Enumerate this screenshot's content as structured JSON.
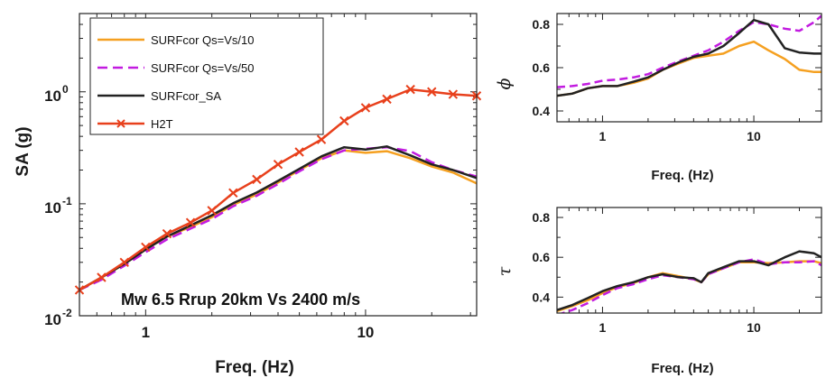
{
  "chart_data": [
    {
      "id": "sa",
      "type": "line",
      "xscale": "log",
      "yscale": "log",
      "xlim": [
        0.5,
        32
      ],
      "ylim": [
        0.01,
        5
      ],
      "xlabel": "Freq. (Hz)",
      "ylabel": "SA (g)",
      "xticks": [
        {
          "v": 1,
          "label": "1"
        },
        {
          "v": 10,
          "label": "10"
        }
      ],
      "yticks": [
        {
          "v": 0.01,
          "base": "10",
          "exp": "-2"
        },
        {
          "v": 0.1,
          "base": "10",
          "exp": "-1"
        },
        {
          "v": 1,
          "base": "10",
          "exp": "0"
        }
      ],
      "annotation": "Mw 6.5 Rrup 20km Vs 2400 m/s",
      "legend_position": "top-left",
      "series": [
        {
          "name": "SURFcor Qs=Vs/10",
          "color": "#f5a020",
          "dash": "",
          "marker": "",
          "x": [
            0.5,
            0.63,
            0.8,
            1,
            1.25,
            1.6,
            2,
            2.5,
            3.2,
            4,
            5,
            6.3,
            8,
            10,
            12.5,
            16,
            20,
            25,
            32
          ],
          "y": [
            0.017,
            0.022,
            0.029,
            0.039,
            0.051,
            0.062,
            0.076,
            0.098,
            0.121,
            0.155,
            0.2,
            0.255,
            0.3,
            0.285,
            0.295,
            0.255,
            0.215,
            0.19,
            0.152
          ]
        },
        {
          "name": "SURFcor Qs=Vs/50",
          "color": "#c21be0",
          "dash": "11 6",
          "marker": "",
          "x": [
            0.5,
            0.63,
            0.8,
            1,
            1.25,
            1.6,
            2,
            2.5,
            3.2,
            4,
            5,
            6.3,
            8,
            10,
            12.5,
            16,
            20,
            25,
            32
          ],
          "y": [
            0.017,
            0.021,
            0.028,
            0.037,
            0.048,
            0.06,
            0.073,
            0.095,
            0.118,
            0.15,
            0.195,
            0.25,
            0.3,
            0.31,
            0.32,
            0.295,
            0.235,
            0.2,
            0.175
          ]
        },
        {
          "name": "SURFcor_SA",
          "color": "#222222",
          "dash": "",
          "marker": "",
          "x": [
            0.5,
            0.63,
            0.8,
            1,
            1.25,
            1.6,
            2,
            2.5,
            3.2,
            4,
            5,
            6.3,
            8,
            10,
            12.5,
            16,
            20,
            25,
            32
          ],
          "y": [
            0.017,
            0.022,
            0.029,
            0.039,
            0.051,
            0.064,
            0.079,
            0.101,
            0.126,
            0.16,
            0.205,
            0.265,
            0.32,
            0.305,
            0.325,
            0.27,
            0.225,
            0.2,
            0.17
          ]
        },
        {
          "name": "H2T",
          "color": "#e8401c",
          "dash": "",
          "marker": "x",
          "x": [
            0.5,
            0.63,
            0.8,
            1,
            1.25,
            1.6,
            2,
            2.5,
            3.2,
            4,
            5,
            6.3,
            8,
            10,
            12.5,
            16,
            20,
            25,
            32
          ],
          "y": [
            0.017,
            0.022,
            0.03,
            0.041,
            0.054,
            0.068,
            0.087,
            0.125,
            0.165,
            0.225,
            0.29,
            0.375,
            0.55,
            0.72,
            0.86,
            1.05,
            1.0,
            0.95,
            0.92
          ]
        }
      ]
    },
    {
      "id": "phi",
      "type": "line",
      "xscale": "log",
      "yscale": "linear",
      "xlim": [
        0.5,
        28
      ],
      "ylim": [
        0.35,
        0.85
      ],
      "xlabel": "Freq. (Hz)",
      "ylabel": "ϕ",
      "xticks": [
        {
          "v": 1,
          "label": "1"
        },
        {
          "v": 10,
          "label": "10"
        }
      ],
      "yticks": [
        {
          "v": 0.4,
          "label": "0.4"
        },
        {
          "v": 0.6,
          "label": "0.6"
        },
        {
          "v": 0.8,
          "label": "0.8"
        }
      ],
      "series": [
        {
          "name": "SURFcor Qs=Vs/10",
          "color": "#f5a020",
          "dash": "",
          "x": [
            0.5,
            0.63,
            0.8,
            1,
            1.25,
            1.6,
            2,
            2.5,
            3.2,
            4,
            5,
            6.3,
            8,
            10,
            12.5,
            16,
            20,
            25,
            28
          ],
          "y": [
            0.47,
            0.48,
            0.505,
            0.515,
            0.515,
            0.53,
            0.55,
            0.59,
            0.62,
            0.645,
            0.655,
            0.665,
            0.7,
            0.72,
            0.68,
            0.64,
            0.59,
            0.58,
            0.58
          ]
        },
        {
          "name": "SURFcor Qs=Vs/50",
          "color": "#c21be0",
          "dash": "9 5",
          "x": [
            0.5,
            0.63,
            0.8,
            1,
            1.25,
            1.6,
            2,
            2.5,
            3.2,
            4,
            5,
            6.3,
            8,
            10,
            12.5,
            16,
            20,
            25,
            28
          ],
          "y": [
            0.51,
            0.515,
            0.525,
            0.54,
            0.545,
            0.555,
            0.57,
            0.6,
            0.63,
            0.655,
            0.68,
            0.72,
            0.77,
            0.81,
            0.8,
            0.78,
            0.77,
            0.81,
            0.84
          ]
        },
        {
          "name": "SURFcor_SA",
          "color": "#222222",
          "dash": "",
          "x": [
            0.5,
            0.63,
            0.8,
            1,
            1.25,
            1.6,
            2,
            2.5,
            3.2,
            4,
            5,
            6.3,
            8,
            10,
            12.5,
            16,
            20,
            25,
            28
          ],
          "y": [
            0.47,
            0.48,
            0.505,
            0.515,
            0.515,
            0.535,
            0.555,
            0.59,
            0.625,
            0.65,
            0.665,
            0.7,
            0.76,
            0.82,
            0.8,
            0.69,
            0.67,
            0.665,
            0.665
          ]
        }
      ]
    },
    {
      "id": "tau",
      "type": "line",
      "xscale": "log",
      "yscale": "linear",
      "xlim": [
        0.5,
        28
      ],
      "ylim": [
        0.32,
        0.85
      ],
      "xlabel": "Freq. (Hz)",
      "ylabel": "τ",
      "xticks": [
        {
          "v": 1,
          "label": "1"
        },
        {
          "v": 10,
          "label": "10"
        }
      ],
      "yticks": [
        {
          "v": 0.4,
          "label": "0.4"
        },
        {
          "v": 0.6,
          "label": "0.6"
        },
        {
          "v": 0.8,
          "label": "0.8"
        }
      ],
      "series": [
        {
          "name": "SURFcor Qs=Vs/10",
          "color": "#f5a020",
          "dash": "",
          "x": [
            0.5,
            0.63,
            0.8,
            1,
            1.25,
            1.6,
            2,
            2.5,
            3.2,
            4,
            4.5,
            5,
            6.3,
            8,
            10,
            12.5,
            16,
            20,
            25,
            28
          ],
          "y": [
            0.33,
            0.355,
            0.385,
            0.42,
            0.45,
            0.47,
            0.5,
            0.52,
            0.505,
            0.49,
            0.475,
            0.515,
            0.545,
            0.575,
            0.575,
            0.57,
            0.575,
            0.58,
            0.58,
            0.57
          ]
        },
        {
          "name": "SURFcor Qs=Vs/50",
          "color": "#c21be0",
          "dash": "9 5",
          "x": [
            0.5,
            0.63,
            0.8,
            1,
            1.25,
            1.6,
            2,
            2.5,
            3.2,
            4,
            4.5,
            5,
            6.3,
            8,
            10,
            12.5,
            16,
            20,
            25,
            28
          ],
          "y": [
            0.31,
            0.335,
            0.37,
            0.41,
            0.445,
            0.465,
            0.49,
            0.51,
            0.5,
            0.49,
            0.475,
            0.515,
            0.545,
            0.575,
            0.59,
            0.565,
            0.575,
            0.575,
            0.58,
            0.56
          ]
        },
        {
          "name": "SURFcor_SA",
          "color": "#222222",
          "dash": "",
          "x": [
            0.5,
            0.63,
            0.8,
            1,
            1.25,
            1.6,
            2,
            2.5,
            3.2,
            4,
            4.5,
            5,
            6.3,
            8,
            10,
            12.5,
            16,
            20,
            25,
            28
          ],
          "y": [
            0.335,
            0.36,
            0.395,
            0.43,
            0.455,
            0.475,
            0.5,
            0.515,
            0.5,
            0.495,
            0.475,
            0.52,
            0.55,
            0.58,
            0.58,
            0.56,
            0.6,
            0.63,
            0.62,
            0.6
          ]
        }
      ]
    }
  ]
}
